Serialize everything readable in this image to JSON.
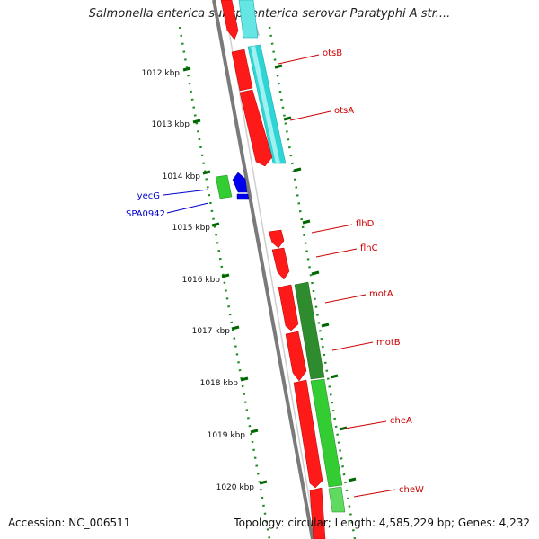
{
  "header": {
    "title": "Salmonella enterica subsp. enterica serovar Paratyphi A str...."
  },
  "footer": {
    "accession": "Accession: NC_006511",
    "summary": "Topology: circular; Length: 4,585,229 bp; Genes: 4,232"
  },
  "ruler": {
    "unit": "kbp",
    "ticks": [
      {
        "label": "1012 kbp"
      },
      {
        "label": "1013 kbp"
      },
      {
        "label": "1014 kbp"
      },
      {
        "label": "1015 kbp"
      },
      {
        "label": "1016 kbp"
      },
      {
        "label": "1017 kbp"
      },
      {
        "label": "1018 kbp"
      },
      {
        "label": "1019 kbp"
      },
      {
        "label": "1020 kbp"
      }
    ]
  },
  "genes": [
    {
      "name": "otsB",
      "color": "#cc0000"
    },
    {
      "name": "otsA",
      "color": "#cc0000"
    },
    {
      "name": "flhD",
      "color": "#cc0000"
    },
    {
      "name": "flhC",
      "color": "#cc0000"
    },
    {
      "name": "motA",
      "color": "#cc0000"
    },
    {
      "name": "motB",
      "color": "#cc0000"
    },
    {
      "name": "cheA",
      "color": "#cc0000"
    },
    {
      "name": "cheW",
      "color": "#cc0000"
    },
    {
      "name": "yecG",
      "color": "#0000cc"
    },
    {
      "name": "SPA0942",
      "color": "#0000cc"
    }
  ],
  "colors": {
    "forward_cds": "#ff0000",
    "reverse_cds": "#0000ff",
    "cyan_track": "#00cccc",
    "green_track": "#33cc33",
    "dark_green_track": "#228b22",
    "backbone": "#888888",
    "tick": "#006600"
  }
}
